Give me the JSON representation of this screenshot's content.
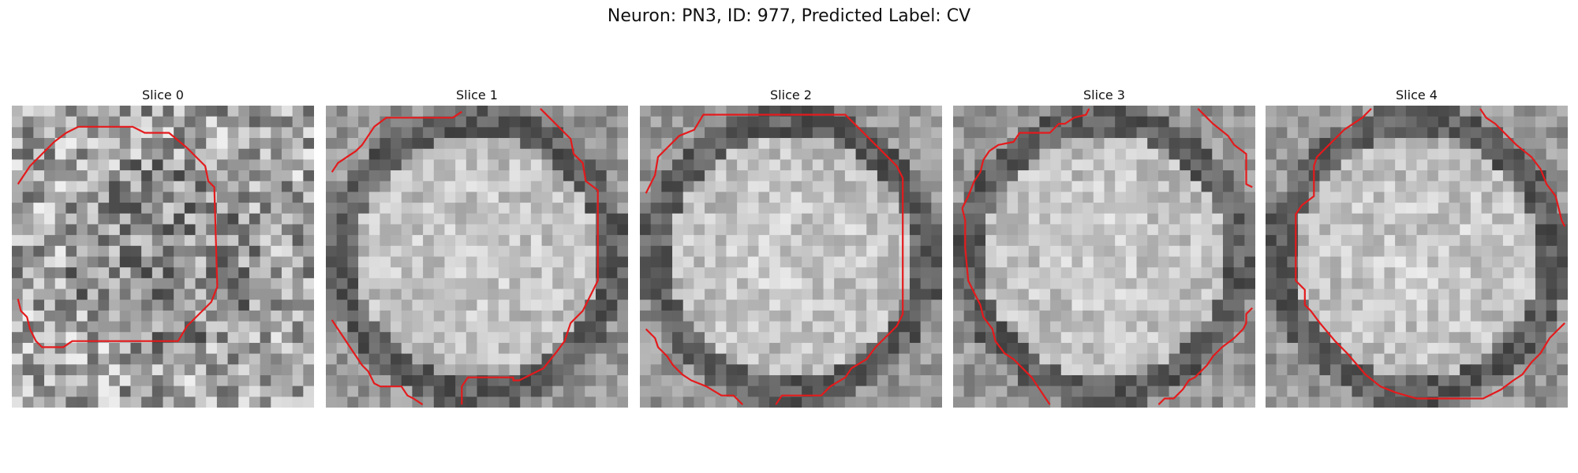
{
  "suptitle": "Neuron: PN3, ID: 977, Predicted Label: CV",
  "contour_color": "#e41a1c",
  "slices": [
    {
      "title": "Slice 0",
      "contour": [
        [
          0.02,
          0.26
        ],
        [
          0.06,
          0.2
        ],
        [
          0.14,
          0.12
        ],
        [
          0.18,
          0.09
        ],
        [
          0.22,
          0.07
        ],
        [
          0.4,
          0.07
        ],
        [
          0.44,
          0.09
        ],
        [
          0.52,
          0.09
        ],
        [
          0.58,
          0.14
        ],
        [
          0.64,
          0.2
        ],
        [
          0.65,
          0.25
        ],
        [
          0.67,
          0.27
        ],
        [
          0.68,
          0.6
        ],
        [
          0.66,
          0.65
        ],
        [
          0.58,
          0.73
        ],
        [
          0.55,
          0.78
        ],
        [
          0.2,
          0.78
        ],
        [
          0.17,
          0.8
        ],
        [
          0.1,
          0.8
        ],
        [
          0.08,
          0.78
        ],
        [
          0.06,
          0.74
        ],
        [
          0.05,
          0.7
        ],
        [
          0.03,
          0.68
        ],
        [
          0.02,
          0.64
        ]
      ]
    },
    {
      "title": "Slice 1",
      "contour": [
        [
          0.02,
          0.22
        ],
        [
          0.04,
          0.19
        ],
        [
          0.07,
          0.17
        ],
        [
          0.1,
          0.15
        ],
        [
          0.12,
          0.13
        ],
        [
          0.16,
          0.07
        ],
        [
          0.2,
          0.04
        ],
        [
          0.42,
          0.04
        ],
        [
          0.45,
          0.02
        ]
      ],
      "contour2": [
        [
          0.71,
          0.01
        ],
        [
          0.74,
          0.04
        ],
        [
          0.78,
          0.08
        ],
        [
          0.81,
          0.11
        ],
        [
          0.82,
          0.16
        ],
        [
          0.85,
          0.19
        ],
        [
          0.86,
          0.25
        ],
        [
          0.9,
          0.28
        ],
        [
          0.9,
          0.58
        ],
        [
          0.88,
          0.62
        ],
        [
          0.85,
          0.68
        ],
        [
          0.81,
          0.72
        ],
        [
          0.79,
          0.78
        ],
        [
          0.76,
          0.82
        ],
        [
          0.72,
          0.87
        ],
        [
          0.64,
          0.91
        ],
        [
          0.62,
          0.91
        ],
        [
          0.62,
          0.9
        ],
        [
          0.47,
          0.9
        ],
        [
          0.45,
          0.93
        ],
        [
          0.45,
          0.99
        ]
      ],
      "contour3": [
        [
          0.02,
          0.71
        ],
        [
          0.04,
          0.74
        ],
        [
          0.06,
          0.77
        ],
        [
          0.08,
          0.8
        ],
        [
          0.1,
          0.83
        ],
        [
          0.12,
          0.86
        ],
        [
          0.14,
          0.88
        ],
        [
          0.16,
          0.92
        ],
        [
          0.18,
          0.93
        ],
        [
          0.25,
          0.93
        ],
        [
          0.27,
          0.96
        ],
        [
          0.29,
          0.97
        ],
        [
          0.32,
          0.99
        ]
      ]
    },
    {
      "title": "Slice 2",
      "contour": [
        [
          0.02,
          0.29
        ],
        [
          0.05,
          0.23
        ],
        [
          0.06,
          0.17
        ],
        [
          0.09,
          0.14
        ],
        [
          0.13,
          0.1
        ],
        [
          0.18,
          0.08
        ],
        [
          0.21,
          0.03
        ],
        [
          0.68,
          0.03
        ],
        [
          0.72,
          0.07
        ],
        [
          0.76,
          0.11
        ],
        [
          0.83,
          0.18
        ],
        [
          0.85,
          0.2
        ],
        [
          0.87,
          0.24
        ],
        [
          0.87,
          0.69
        ],
        [
          0.85,
          0.73
        ],
        [
          0.82,
          0.76
        ],
        [
          0.78,
          0.8
        ],
        [
          0.75,
          0.84
        ],
        [
          0.7,
          0.87
        ],
        [
          0.68,
          0.9
        ],
        [
          0.63,
          0.93
        ],
        [
          0.6,
          0.96
        ],
        [
          0.47,
          0.96
        ],
        [
          0.45,
          0.99
        ]
      ],
      "contour2": [
        [
          0.02,
          0.74
        ],
        [
          0.05,
          0.77
        ],
        [
          0.06,
          0.8
        ],
        [
          0.09,
          0.83
        ],
        [
          0.11,
          0.86
        ],
        [
          0.14,
          0.89
        ],
        [
          0.17,
          0.91
        ],
        [
          0.22,
          0.93
        ],
        [
          0.27,
          0.96
        ],
        [
          0.31,
          0.96
        ],
        [
          0.34,
          0.99
        ]
      ]
    },
    {
      "title": "Slice 3",
      "contour": [
        [
          0.03,
          0.34
        ],
        [
          0.05,
          0.3
        ],
        [
          0.07,
          0.25
        ],
        [
          0.09,
          0.22
        ],
        [
          0.1,
          0.18
        ],
        [
          0.12,
          0.15
        ],
        [
          0.15,
          0.13
        ],
        [
          0.2,
          0.12
        ],
        [
          0.22,
          0.09
        ],
        [
          0.32,
          0.09
        ],
        [
          0.35,
          0.06
        ],
        [
          0.37,
          0.06
        ],
        [
          0.4,
          0.04
        ],
        [
          0.44,
          0.03
        ],
        [
          0.45,
          0.01
        ]
      ],
      "contour2": [
        [
          0.81,
          0.01
        ],
        [
          0.84,
          0.04
        ],
        [
          0.86,
          0.06
        ],
        [
          0.91,
          0.1
        ],
        [
          0.93,
          0.13
        ],
        [
          0.97,
          0.16
        ],
        [
          0.97,
          0.26
        ],
        [
          0.99,
          0.27
        ]
      ],
      "contour3": [
        [
          0.03,
          0.34
        ],
        [
          0.04,
          0.38
        ],
        [
          0.04,
          0.47
        ],
        [
          0.05,
          0.58
        ],
        [
          0.07,
          0.62
        ],
        [
          0.09,
          0.66
        ],
        [
          0.1,
          0.7
        ],
        [
          0.13,
          0.74
        ],
        [
          0.14,
          0.78
        ],
        [
          0.17,
          0.82
        ],
        [
          0.2,
          0.84
        ],
        [
          0.23,
          0.87
        ],
        [
          0.26,
          0.9
        ],
        [
          0.28,
          0.93
        ],
        [
          0.32,
          0.99
        ]
      ],
      "contour4": [
        [
          0.68,
          0.99
        ],
        [
          0.7,
          0.97
        ],
        [
          0.73,
          0.97
        ],
        [
          0.76,
          0.94
        ],
        [
          0.78,
          0.91
        ],
        [
          0.8,
          0.9
        ],
        [
          0.84,
          0.86
        ],
        [
          0.86,
          0.83
        ],
        [
          0.89,
          0.8
        ],
        [
          0.93,
          0.77
        ],
        [
          0.96,
          0.74
        ],
        [
          0.97,
          0.72
        ],
        [
          0.97,
          0.69
        ],
        [
          0.99,
          0.67
        ]
      ]
    },
    {
      "title": "Slice 4",
      "contour": [
        [
          0.35,
          0.01
        ],
        [
          0.32,
          0.04
        ],
        [
          0.26,
          0.08
        ],
        [
          0.21,
          0.13
        ],
        [
          0.17,
          0.17
        ],
        [
          0.16,
          0.2
        ],
        [
          0.16,
          0.3
        ],
        [
          0.12,
          0.33
        ],
        [
          0.1,
          0.36
        ],
        [
          0.1,
          0.58
        ],
        [
          0.13,
          0.61
        ],
        [
          0.13,
          0.66
        ],
        [
          0.15,
          0.68
        ],
        [
          0.18,
          0.72
        ],
        [
          0.23,
          0.78
        ],
        [
          0.27,
          0.82
        ],
        [
          0.33,
          0.89
        ],
        [
          0.38,
          0.93
        ],
        [
          0.43,
          0.95
        ],
        [
          0.5,
          0.97
        ],
        [
          0.72,
          0.97
        ],
        [
          0.78,
          0.94
        ],
        [
          0.82,
          0.91
        ],
        [
          0.85,
          0.89
        ],
        [
          0.88,
          0.85
        ],
        [
          0.91,
          0.82
        ],
        [
          0.94,
          0.77
        ],
        [
          0.97,
          0.74
        ],
        [
          0.99,
          0.72
        ]
      ],
      "contour2": [
        [
          0.71,
          0.01
        ],
        [
          0.73,
          0.04
        ],
        [
          0.76,
          0.06
        ],
        [
          0.8,
          0.1
        ],
        [
          0.83,
          0.13
        ],
        [
          0.88,
          0.17
        ],
        [
          0.91,
          0.21
        ],
        [
          0.93,
          0.26
        ],
        [
          0.96,
          0.3
        ],
        [
          0.97,
          0.34
        ],
        [
          0.98,
          0.38
        ],
        [
          0.99,
          0.4
        ]
      ]
    }
  ]
}
